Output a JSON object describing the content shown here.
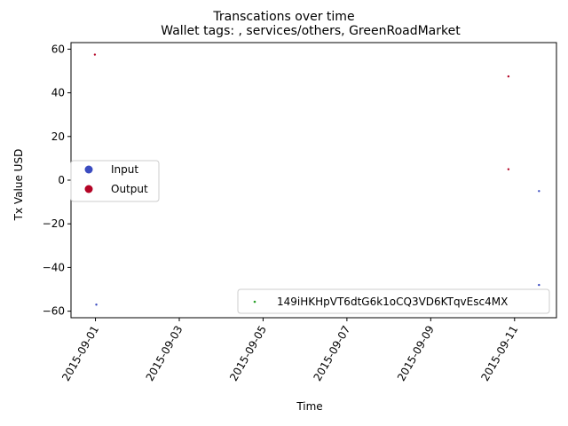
{
  "chart_data": {
    "type": "scatter",
    "title": "Transcations over time",
    "subtitle": "Wallet tags: , services/others, GreenRoadMarket",
    "xlabel": "Time",
    "ylabel": "Tx Value USD",
    "xlim": [
      "2015-08-31 10:00",
      "2015-09-12 00:00"
    ],
    "ylim": [
      -63,
      63
    ],
    "x_ticks": [
      "2015-09-01",
      "2015-09-03",
      "2015-09-05",
      "2015-09-07",
      "2015-09-09",
      "2015-09-11"
    ],
    "y_ticks": [
      60,
      40,
      20,
      0,
      -20,
      -40,
      -60
    ],
    "y_tick_labels": [
      "60",
      "40",
      "20",
      "0",
      "−20",
      "−40",
      "−60"
    ],
    "grid": false,
    "series": [
      {
        "name": "Input",
        "color": "#3b4cc0",
        "points": [
          {
            "x": "2015-09-01 00:30",
            "y": -57
          },
          {
            "x": "2015-09-11 14:00",
            "y": -5
          },
          {
            "x": "2015-09-11 14:00",
            "y": -48
          }
        ]
      },
      {
        "name": "Output",
        "color": "#b40426",
        "points": [
          {
            "x": "2015-08-31 23:40",
            "y": 57.5
          },
          {
            "x": "2015-09-10 20:30",
            "y": 47.5
          },
          {
            "x": "2015-09-10 20:30",
            "y": 5
          }
        ]
      }
    ],
    "legends": [
      {
        "placement": "center-left",
        "entries": [
          {
            "label": "Input",
            "color": "#3b4cc0"
          },
          {
            "label": "Output",
            "color": "#b40426"
          }
        ]
      },
      {
        "placement": "lower-right",
        "entries": [
          {
            "label": "149iHKHpVT6dtG6k1oCQ3VD6KTqvEsc4MX",
            "color": "#2ca02c"
          }
        ]
      }
    ]
  }
}
